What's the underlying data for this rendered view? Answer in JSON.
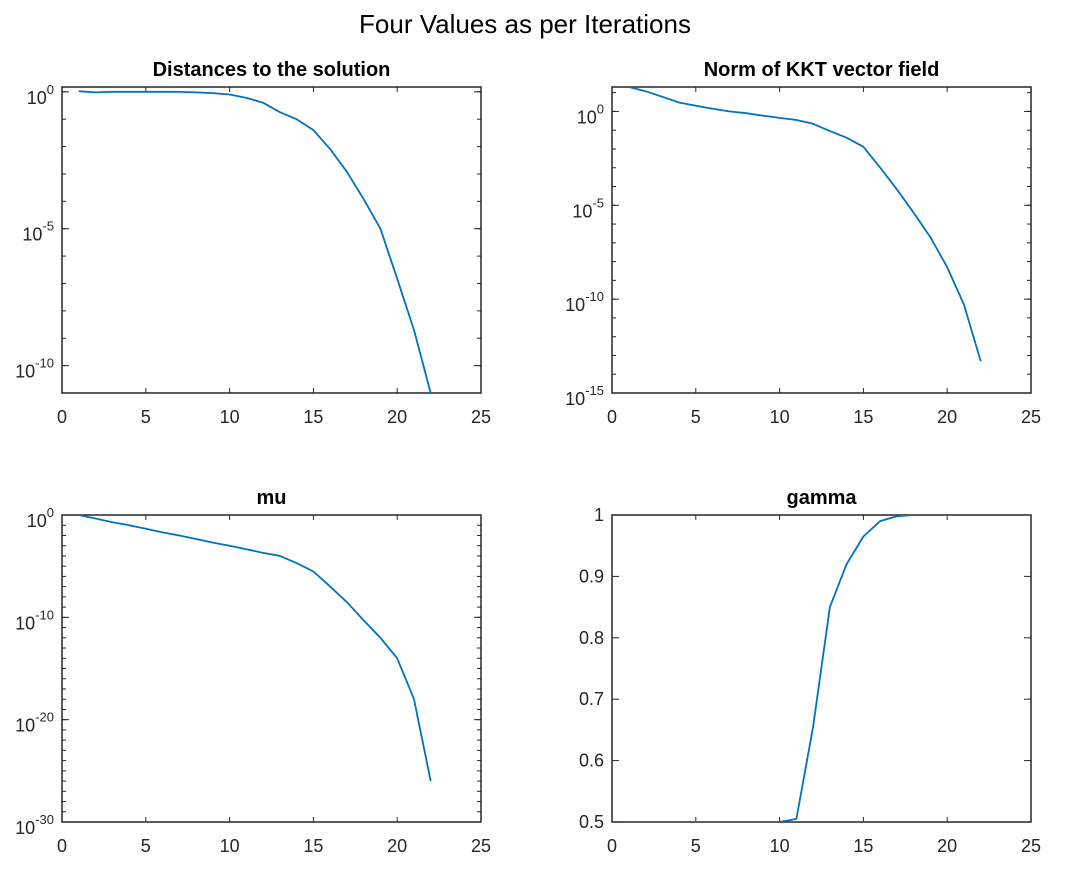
{
  "figure": {
    "title": "Four Values as per Iterations"
  },
  "colors": {
    "series": "#0072BD",
    "axis": "#262626"
  },
  "chart_data": [
    {
      "type": "line",
      "title": "Distances to the solution",
      "xlabel": "",
      "ylabel": "",
      "yscale": "log",
      "xlim": [
        0,
        25
      ],
      "ylim": [
        1e-11,
        1.5
      ],
      "xticks": [
        0,
        5,
        10,
        15,
        20,
        25
      ],
      "yticks": [
        {
          "value": 1,
          "base": "10",
          "exp": "0"
        },
        {
          "value": 1e-05,
          "base": "10",
          "exp": "-5"
        },
        {
          "value": 1e-10,
          "base": "10",
          "exp": "-10"
        }
      ],
      "x": [
        1,
        2,
        3,
        4,
        5,
        6,
        7,
        8,
        9,
        10,
        11,
        12,
        13,
        14,
        15,
        16,
        17,
        18,
        19,
        20,
        21,
        22
      ],
      "y": [
        1.05,
        0.95,
        1.0,
        1.0,
        1.0,
        1.0,
        0.99,
        0.95,
        0.9,
        0.8,
        0.6,
        0.4,
        0.18,
        0.1,
        0.04,
        0.008,
        0.0012,
        0.00012,
        1e-05,
        1.5e-07,
        2e-09,
        1e-11
      ],
      "grid": false,
      "legend": "none"
    },
    {
      "type": "line",
      "title": "Norm of KKT vector field",
      "xlabel": "",
      "ylabel": "",
      "yscale": "log",
      "xlim": [
        0,
        25
      ],
      "ylim": [
        1e-15,
        20
      ],
      "xticks": [
        0,
        5,
        10,
        15,
        20,
        25
      ],
      "yticks": [
        {
          "value": 1,
          "base": "10",
          "exp": "0"
        },
        {
          "value": 1e-05,
          "base": "10",
          "exp": "-5"
        },
        {
          "value": 1e-10,
          "base": "10",
          "exp": "-10"
        },
        {
          "value": 1e-15,
          "base": "10",
          "exp": "-15"
        }
      ],
      "x": [
        1,
        2,
        3,
        4,
        5,
        6,
        7,
        8,
        9,
        10,
        11,
        12,
        13,
        14,
        15,
        16,
        17,
        18,
        19,
        20,
        21,
        22
      ],
      "y": [
        20,
        12,
        6,
        3,
        2,
        1.4,
        1,
        0.8,
        0.6,
        0.45,
        0.35,
        0.22,
        0.09,
        0.04,
        0.013,
        0.001,
        7e-05,
        4e-06,
        2e-07,
        5e-09,
        5e-11,
        5e-14
      ],
      "grid": false,
      "legend": "none"
    },
    {
      "type": "line",
      "title": "mu",
      "xlabel": "",
      "ylabel": "",
      "yscale": "log",
      "xlim": [
        0,
        25
      ],
      "ylim": [
        1e-30,
        1
      ],
      "xticks": [
        0,
        5,
        10,
        15,
        20,
        25
      ],
      "yticks": [
        {
          "value": 1,
          "base": "10",
          "exp": "0"
        },
        {
          "value": 1e-10,
          "base": "10",
          "exp": "-10"
        },
        {
          "value": 1e-20,
          "base": "10",
          "exp": "-20"
        },
        {
          "value": 1e-30,
          "base": "10",
          "exp": "-30"
        }
      ],
      "x": [
        1,
        2,
        3,
        4,
        5,
        6,
        7,
        8,
        9,
        10,
        11,
        12,
        13,
        14,
        15,
        16,
        17,
        18,
        19,
        20,
        21,
        22
      ],
      "y": [
        1,
        0.45,
        0.2,
        0.1,
        0.045,
        0.02,
        0.01,
        0.0045,
        0.002,
        0.001,
        0.00045,
        0.0002,
        0.0001,
        2e-05,
        3e-06,
        1e-07,
        3e-09,
        5e-11,
        1e-12,
        1e-14,
        1e-18,
        1e-26
      ],
      "grid": false,
      "legend": "none"
    },
    {
      "type": "line",
      "title": "gamma",
      "xlabel": "",
      "ylabel": "",
      "yscale": "linear",
      "xlim": [
        0,
        25
      ],
      "ylim": [
        0.5,
        1
      ],
      "xticks": [
        0,
        5,
        10,
        15,
        20,
        25
      ],
      "yticks": [
        {
          "value": 0.5,
          "label": "0.5"
        },
        {
          "value": 0.6,
          "label": "0.6"
        },
        {
          "value": 0.7,
          "label": "0.7"
        },
        {
          "value": 0.8,
          "label": "0.8"
        },
        {
          "value": 0.9,
          "label": "0.9"
        },
        {
          "value": 1,
          "label": "1"
        }
      ],
      "x": [
        1,
        2,
        3,
        4,
        5,
        6,
        7,
        8,
        9,
        10,
        11,
        12,
        13,
        14,
        15,
        16,
        17,
        18,
        19,
        20,
        21,
        22
      ],
      "y": [
        0.5,
        0.5,
        0.5,
        0.5,
        0.5,
        0.5,
        0.5,
        0.5,
        0.5,
        0.5,
        0.505,
        0.655,
        0.85,
        0.92,
        0.965,
        0.99,
        0.998,
        1,
        1,
        1,
        1,
        1
      ],
      "grid": false,
      "legend": "none"
    }
  ]
}
